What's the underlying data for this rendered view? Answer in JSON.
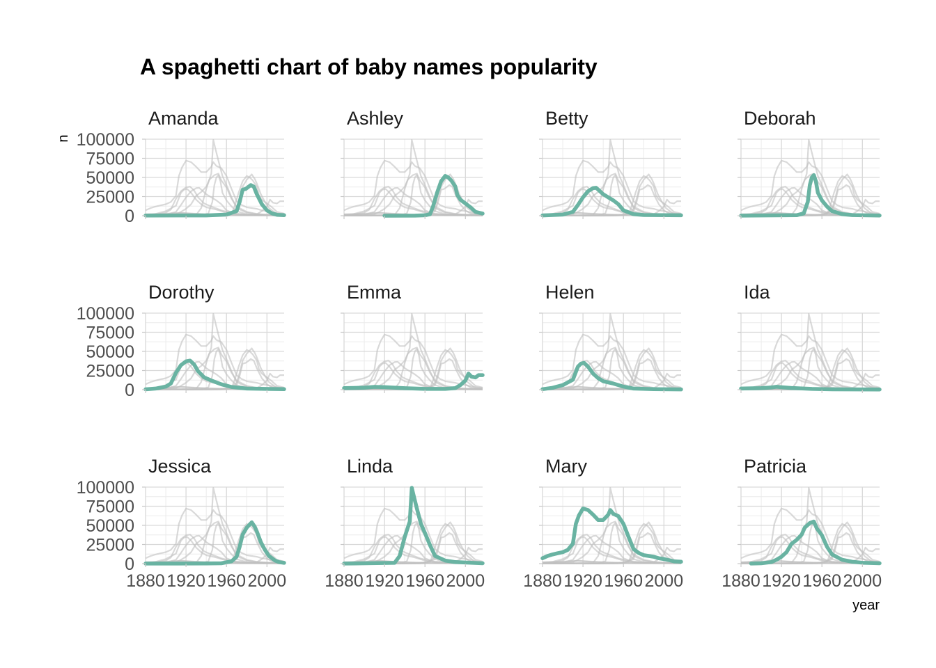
{
  "chart_data": {
    "type": "line",
    "title": "A spaghetti chart of baby names popularity",
    "xlabel": "year",
    "ylabel": "n",
    "x_ticks": [
      1880,
      1920,
      1960,
      2000
    ],
    "x_tick_labels": [
      "1880",
      "1920",
      "1960",
      "2000"
    ],
    "y_ticks": [
      0,
      25000,
      50000,
      75000,
      100000
    ],
    "y_tick_labels": [
      "0",
      "25000",
      "50000",
      "75000",
      "100000"
    ],
    "xlim": [
      1880,
      2017
    ],
    "ylim": [
      0,
      100000
    ],
    "grid": true,
    "highlight_color": "#69b3a2",
    "background_line_color": "#bfbfbf",
    "facets": [
      "Amanda",
      "Ashley",
      "Betty",
      "Deborah",
      "Dorothy",
      "Emma",
      "Helen",
      "Ida",
      "Jessica",
      "Linda",
      "Mary",
      "Patricia"
    ],
    "series": [
      {
        "name": "Amanda",
        "points": [
          [
            1880,
            300
          ],
          [
            1940,
            400
          ],
          [
            1960,
            1500
          ],
          [
            1970,
            6000
          ],
          [
            1973,
            18000
          ],
          [
            1976,
            34000
          ],
          [
            1979,
            35000
          ],
          [
            1982,
            38000
          ],
          [
            1984,
            40000
          ],
          [
            1987,
            38000
          ],
          [
            1990,
            28000
          ],
          [
            1995,
            15000
          ],
          [
            2000,
            7000
          ],
          [
            2005,
            3000
          ],
          [
            2010,
            1200
          ],
          [
            2017,
            700
          ]
        ]
      },
      {
        "name": "Ashley",
        "points": [
          [
            1920,
            0
          ],
          [
            1950,
            100
          ],
          [
            1960,
            500
          ],
          [
            1965,
            2000
          ],
          [
            1968,
            12000
          ],
          [
            1972,
            30000
          ],
          [
            1976,
            45000
          ],
          [
            1980,
            52000
          ],
          [
            1983,
            50000
          ],
          [
            1986,
            46000
          ],
          [
            1990,
            38000
          ],
          [
            1992,
            27000
          ],
          [
            1995,
            21000
          ],
          [
            2000,
            16000
          ],
          [
            2005,
            11000
          ],
          [
            2010,
            5000
          ],
          [
            2017,
            2800
          ]
        ]
      },
      {
        "name": "Betty",
        "points": [
          [
            1880,
            400
          ],
          [
            1900,
            1500
          ],
          [
            1910,
            5000
          ],
          [
            1915,
            14000
          ],
          [
            1920,
            24000
          ],
          [
            1925,
            32000
          ],
          [
            1930,
            36000
          ],
          [
            1933,
            36500
          ],
          [
            1936,
            33000
          ],
          [
            1940,
            28000
          ],
          [
            1945,
            24000
          ],
          [
            1950,
            20000
          ],
          [
            1955,
            15000
          ],
          [
            1960,
            7000
          ],
          [
            1970,
            2000
          ],
          [
            1980,
            900
          ],
          [
            2017,
            500
          ]
        ]
      },
      {
        "name": "Deborah",
        "points": [
          [
            1880,
            100
          ],
          [
            1935,
            600
          ],
          [
            1942,
            3000
          ],
          [
            1946,
            18000
          ],
          [
            1948,
            40000
          ],
          [
            1950,
            50000
          ],
          [
            1952,
            53000
          ],
          [
            1954,
            45000
          ],
          [
            1956,
            30000
          ],
          [
            1960,
            20000
          ],
          [
            1965,
            12000
          ],
          [
            1970,
            6000
          ],
          [
            1980,
            2000
          ],
          [
            1990,
            800
          ],
          [
            2017,
            300
          ]
        ]
      },
      {
        "name": "Dorothy",
        "points": [
          [
            1880,
            500
          ],
          [
            1890,
            1500
          ],
          [
            1900,
            4000
          ],
          [
            1905,
            8000
          ],
          [
            1910,
            22000
          ],
          [
            1915,
            32000
          ],
          [
            1920,
            37000
          ],
          [
            1924,
            38000
          ],
          [
            1928,
            33000
          ],
          [
            1932,
            24000
          ],
          [
            1938,
            16000
          ],
          [
            1945,
            12000
          ],
          [
            1955,
            7000
          ],
          [
            1965,
            3500
          ],
          [
            1980,
            1500
          ],
          [
            2017,
            600
          ]
        ]
      },
      {
        "name": "Emma",
        "points": [
          [
            1880,
            2000
          ],
          [
            1900,
            2600
          ],
          [
            1910,
            3600
          ],
          [
            1920,
            3300
          ],
          [
            1940,
            1900
          ],
          [
            1960,
            1000
          ],
          [
            1980,
            1000
          ],
          [
            1990,
            2000
          ],
          [
            1995,
            6000
          ],
          [
            2000,
            12000
          ],
          [
            2003,
            21000
          ],
          [
            2006,
            17000
          ],
          [
            2010,
            16000
          ],
          [
            2013,
            19000
          ],
          [
            2017,
            19000
          ]
        ]
      },
      {
        "name": "Helen",
        "points": [
          [
            1880,
            600
          ],
          [
            1890,
            2500
          ],
          [
            1900,
            6000
          ],
          [
            1910,
            13000
          ],
          [
            1915,
            30000
          ],
          [
            1918,
            34000
          ],
          [
            1921,
            35000
          ],
          [
            1925,
            30000
          ],
          [
            1930,
            21000
          ],
          [
            1935,
            15000
          ],
          [
            1940,
            11000
          ],
          [
            1950,
            8000
          ],
          [
            1960,
            4000
          ],
          [
            1970,
            1500
          ],
          [
            1990,
            700
          ],
          [
            2017,
            400
          ]
        ]
      },
      {
        "name": "Ida",
        "points": [
          [
            1880,
            1500
          ],
          [
            1900,
            2000
          ],
          [
            1910,
            2800
          ],
          [
            1915,
            3800
          ],
          [
            1920,
            3200
          ],
          [
            1930,
            2200
          ],
          [
            1950,
            1000
          ],
          [
            1970,
            500
          ],
          [
            2017,
            300
          ]
        ]
      },
      {
        "name": "Jessica",
        "points": [
          [
            1880,
            100
          ],
          [
            1940,
            200
          ],
          [
            1955,
            500
          ],
          [
            1965,
            3000
          ],
          [
            1970,
            9000
          ],
          [
            1973,
            22000
          ],
          [
            1976,
            38000
          ],
          [
            1980,
            47000
          ],
          [
            1985,
            54000
          ],
          [
            1988,
            48000
          ],
          [
            1990,
            42000
          ],
          [
            1994,
            28000
          ],
          [
            1998,
            18000
          ],
          [
            2002,
            10000
          ],
          [
            2008,
            4000
          ],
          [
            2012,
            2000
          ],
          [
            2017,
            1000
          ]
        ]
      },
      {
        "name": "Linda",
        "points": [
          [
            1880,
            100
          ],
          [
            1930,
            1000
          ],
          [
            1935,
            10000
          ],
          [
            1940,
            35000
          ],
          [
            1945,
            55000
          ],
          [
            1947,
            99000
          ],
          [
            1949,
            88000
          ],
          [
            1952,
            72000
          ],
          [
            1956,
            52000
          ],
          [
            1960,
            40000
          ],
          [
            1965,
            24000
          ],
          [
            1970,
            10000
          ],
          [
            1980,
            4000
          ],
          [
            1990,
            2000
          ],
          [
            2017,
            500
          ]
        ]
      },
      {
        "name": "Mary",
        "points": [
          [
            1880,
            7000
          ],
          [
            1885,
            10000
          ],
          [
            1890,
            12000
          ],
          [
            1895,
            13500
          ],
          [
            1900,
            15000
          ],
          [
            1905,
            18000
          ],
          [
            1910,
            26000
          ],
          [
            1913,
            52000
          ],
          [
            1916,
            63000
          ],
          [
            1920,
            72000
          ],
          [
            1925,
            70000
          ],
          [
            1930,
            64000
          ],
          [
            1935,
            57000
          ],
          [
            1940,
            57000
          ],
          [
            1945,
            64000
          ],
          [
            1947,
            70000
          ],
          [
            1950,
            65000
          ],
          [
            1955,
            62000
          ],
          [
            1960,
            52000
          ],
          [
            1965,
            35000
          ],
          [
            1970,
            19000
          ],
          [
            1975,
            14000
          ],
          [
            1980,
            11000
          ],
          [
            1985,
            10000
          ],
          [
            1990,
            9000
          ],
          [
            1995,
            7000
          ],
          [
            2000,
            6000
          ],
          [
            2005,
            4500
          ],
          [
            2010,
            3000
          ],
          [
            2017,
            2500
          ]
        ]
      },
      {
        "name": "Patricia",
        "points": [
          [
            1890,
            100
          ],
          [
            1900,
            500
          ],
          [
            1910,
            2000
          ],
          [
            1915,
            5000
          ],
          [
            1920,
            9000
          ],
          [
            1925,
            15000
          ],
          [
            1930,
            26000
          ],
          [
            1935,
            31000
          ],
          [
            1940,
            38000
          ],
          [
            1943,
            47000
          ],
          [
            1948,
            53000
          ],
          [
            1952,
            55000
          ],
          [
            1955,
            46000
          ],
          [
            1960,
            37000
          ],
          [
            1965,
            22000
          ],
          [
            1970,
            12000
          ],
          [
            1980,
            5000
          ],
          [
            1990,
            2500
          ],
          [
            2000,
            1200
          ],
          [
            2017,
            500
          ]
        ]
      }
    ]
  }
}
